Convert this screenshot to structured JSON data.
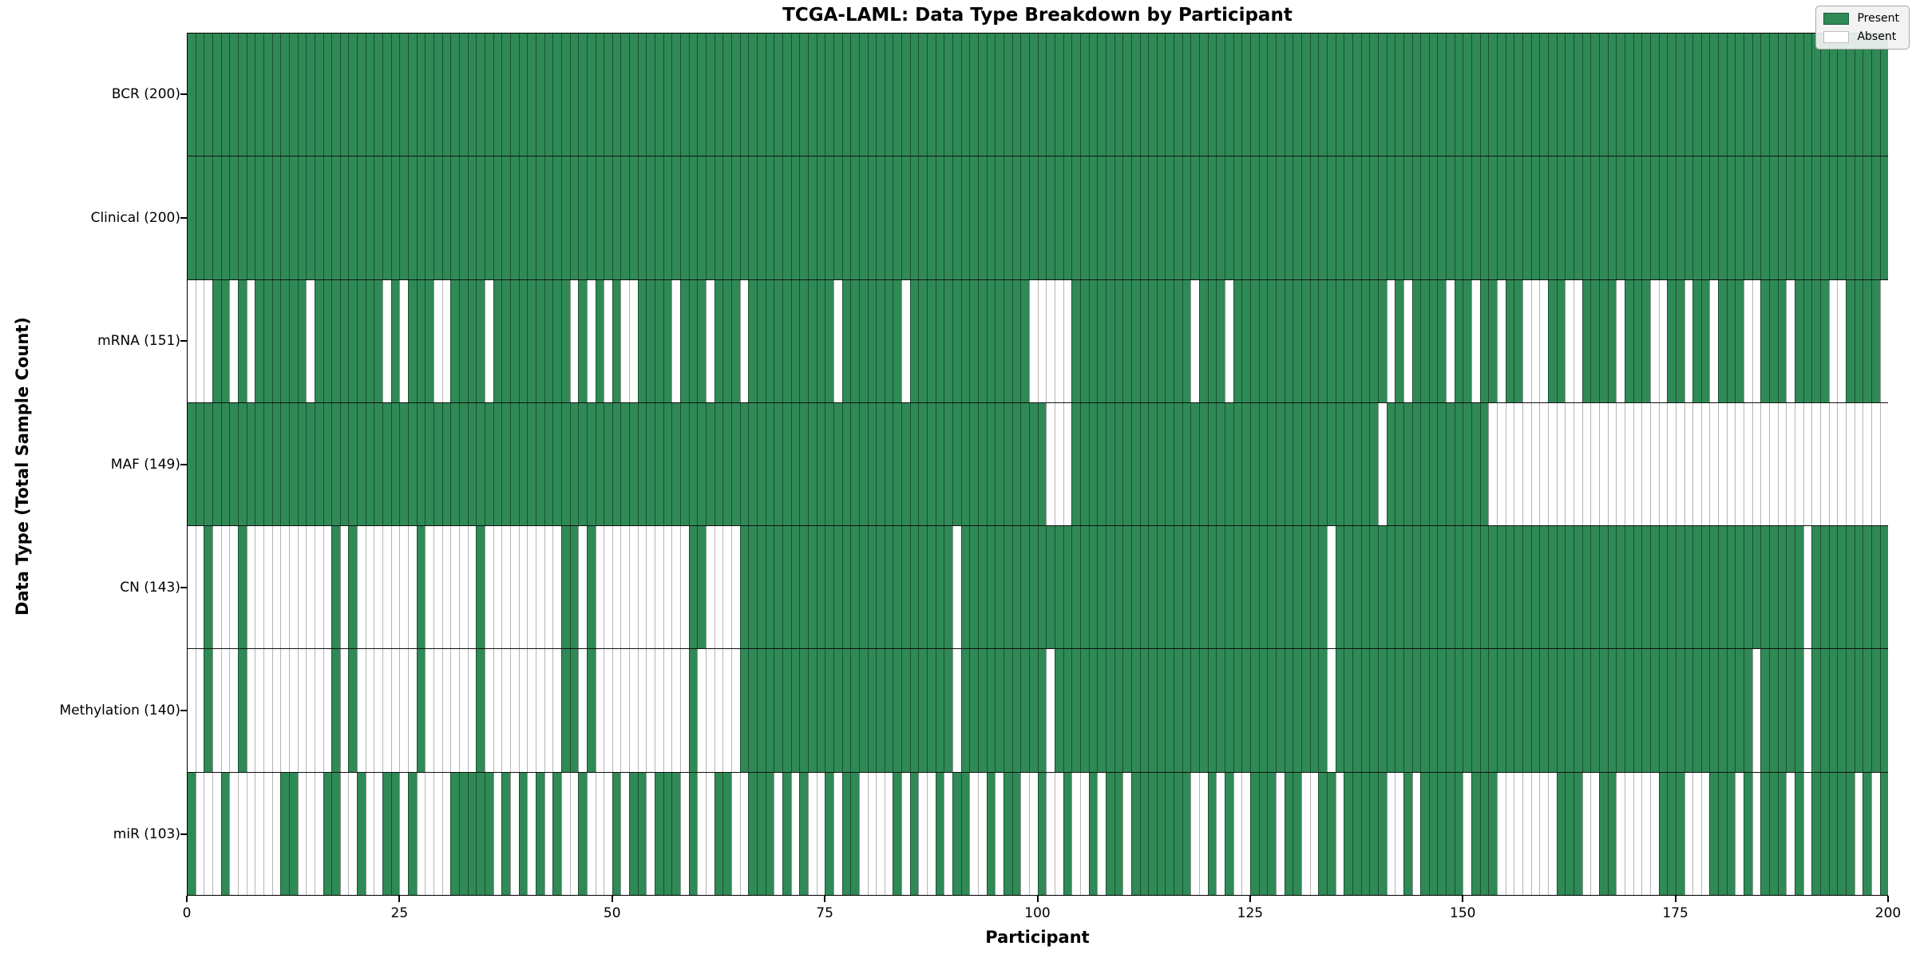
{
  "title": "TCGA-LAML: Data Type Breakdown by Participant",
  "xlabel": "Participant",
  "ylabel": "Data Type (Total Sample Count)",
  "legend": {
    "present_label": "Present",
    "absent_label": "Absent"
  },
  "colors": {
    "present": "#2f8a56",
    "absent": "#ffffff",
    "cell_edge": "rgba(0,0,0,0.42)",
    "row_separator": "#111111",
    "plot_border": "#000000",
    "legend_bg": "#f2f2f2"
  },
  "chart_data": {
    "type": "heatmap",
    "title": "TCGA-LAML: Data Type Breakdown by Participant",
    "xlabel": "Participant",
    "ylabel": "Data Type (Total Sample Count)",
    "x_range": [
      0,
      200
    ],
    "x_ticks": [
      0,
      25,
      50,
      75,
      100,
      125,
      150,
      175,
      200
    ],
    "n_participants": 200,
    "legend_position": "upper right",
    "grid": false,
    "value_encoding": {
      "present": 1,
      "absent": 0
    },
    "rows": [
      {
        "label": "BCR (200)",
        "data_type": "BCR",
        "present_count": 200,
        "absent_participants": []
      },
      {
        "label": "Clinical (200)",
        "data_type": "Clinical",
        "present_count": 200,
        "absent_participants": []
      },
      {
        "label": "mRNA (151)",
        "data_type": "mRNA",
        "present_count": 151,
        "absent_participants": [
          0,
          1,
          2,
          5,
          7,
          14,
          23,
          25,
          29,
          30,
          35,
          45,
          47,
          49,
          51,
          52,
          57,
          61,
          65,
          76,
          84,
          99,
          100,
          101,
          102,
          103,
          118,
          122,
          141,
          143,
          148,
          151,
          154,
          157,
          158,
          159,
          162,
          163,
          168,
          172,
          173,
          176,
          179,
          183,
          184,
          188,
          193,
          194,
          199
        ]
      },
      {
        "label": "MAF (149)",
        "data_type": "MAF",
        "present_count": 149,
        "absent_participants": [
          101,
          102,
          103,
          140,
          153,
          154,
          155,
          156,
          157,
          158,
          159,
          160,
          161,
          162,
          163,
          164,
          165,
          166,
          167,
          168,
          169,
          170,
          171,
          172,
          173,
          174,
          175,
          176,
          177,
          178,
          179,
          180,
          181,
          182,
          183,
          184,
          185,
          186,
          187,
          188,
          189,
          190,
          191,
          192,
          193,
          194,
          195,
          196,
          197,
          198,
          199
        ]
      },
      {
        "label": "CN (143)",
        "data_type": "CN",
        "present_count": 143,
        "absent_participants": [
          0,
          1,
          3,
          4,
          5,
          7,
          8,
          9,
          10,
          11,
          12,
          13,
          14,
          15,
          16,
          18,
          20,
          21,
          22,
          23,
          24,
          25,
          26,
          28,
          29,
          30,
          31,
          32,
          33,
          35,
          36,
          37,
          38,
          39,
          40,
          41,
          42,
          43,
          46,
          48,
          49,
          50,
          51,
          52,
          53,
          54,
          55,
          56,
          57,
          58,
          61,
          62,
          63,
          64,
          90,
          134,
          190
        ]
      },
      {
        "label": "Methylation (140)",
        "data_type": "Methylation",
        "present_count": 140,
        "absent_participants": [
          0,
          1,
          3,
          4,
          5,
          7,
          8,
          9,
          10,
          11,
          12,
          13,
          14,
          15,
          16,
          18,
          20,
          21,
          22,
          23,
          24,
          25,
          26,
          28,
          29,
          30,
          31,
          32,
          33,
          35,
          36,
          37,
          38,
          39,
          40,
          41,
          42,
          43,
          46,
          48,
          49,
          50,
          51,
          52,
          53,
          54,
          55,
          56,
          57,
          58,
          60,
          61,
          62,
          63,
          64,
          90,
          101,
          134,
          184,
          190
        ]
      },
      {
        "label": "miR (103)",
        "data_type": "miR",
        "present_count": 103,
        "absent_participants": [
          1,
          2,
          3,
          5,
          6,
          7,
          8,
          9,
          10,
          13,
          14,
          15,
          18,
          19,
          21,
          22,
          25,
          27,
          28,
          29,
          30,
          36,
          38,
          40,
          42,
          44,
          45,
          47,
          48,
          49,
          51,
          54,
          58,
          60,
          61,
          64,
          65,
          69,
          71,
          73,
          74,
          76,
          79,
          80,
          81,
          82,
          84,
          86,
          87,
          89,
          92,
          93,
          95,
          98,
          99,
          101,
          102,
          104,
          105,
          107,
          110,
          118,
          119,
          121,
          123,
          124,
          128,
          131,
          132,
          135,
          141,
          142,
          144,
          150,
          154,
          155,
          156,
          157,
          158,
          159,
          160,
          164,
          165,
          168,
          169,
          170,
          171,
          172,
          176,
          177,
          178,
          182,
          184,
          188,
          190,
          196,
          198
        ]
      }
    ]
  }
}
